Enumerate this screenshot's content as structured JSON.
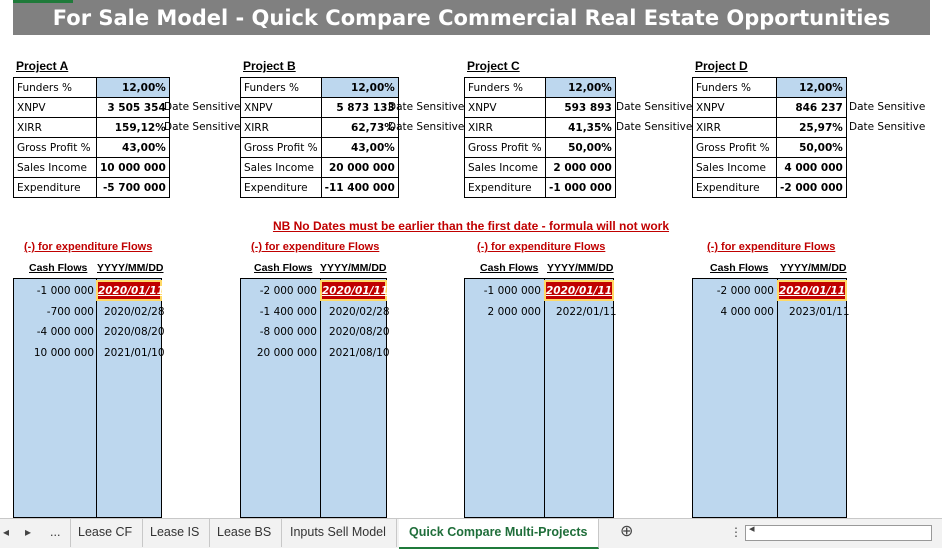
{
  "title": "For Sale Model - Quick Compare Commercial Real Estate Opportunities",
  "labels": {
    "funders": "Funders %",
    "xnpv": "XNPV",
    "xirr": "XIRR",
    "gross_profit": "Gross Profit %",
    "sales_income": "Sales Income",
    "expenditure": "Expenditure",
    "date_sensitive": "Date Sensitive",
    "exp_flows": "(-) for expenditure Flows",
    "cash_flows": "Cash Flows",
    "date_fmt": "YYYY/MM/DD"
  },
  "nb_note": "NB No Dates must be earlier than the first date - formula will not work",
  "projects": [
    {
      "name": "Project A",
      "funders": "12,00%",
      "xnpv": "3 505 354",
      "xirr": "159,12%",
      "gross_profit": "43,00%",
      "sales_income": "10 000 000",
      "expenditure": "-5 700 000",
      "flows": [
        {
          "cf": "-1 000 000",
          "date": "2020/01/11"
        },
        {
          "cf": "-700 000",
          "date": "2020/02/28"
        },
        {
          "cf": "-4 000 000",
          "date": "2020/08/20"
        },
        {
          "cf": "10 000 000",
          "date": "2021/01/10"
        }
      ]
    },
    {
      "name": "Project B",
      "funders": "12,00%",
      "xnpv": "5 873 133",
      "xirr": "62,73%",
      "gross_profit": "43,00%",
      "sales_income": "20 000 000",
      "expenditure": "-11 400 000",
      "flows": [
        {
          "cf": "-2 000 000",
          "date": "2020/01/11"
        },
        {
          "cf": "-1 400 000",
          "date": "2020/02/28"
        },
        {
          "cf": "-8 000 000",
          "date": "2020/08/20"
        },
        {
          "cf": "20 000 000",
          "date": "2021/08/10"
        }
      ]
    },
    {
      "name": "Project C",
      "funders": "12,00%",
      "xnpv": "593 893",
      "xirr": "41,35%",
      "gross_profit": "50,00%",
      "sales_income": "2 000 000",
      "expenditure": "-1 000 000",
      "flows": [
        {
          "cf": "-1 000 000",
          "date": "2020/01/11"
        },
        {
          "cf": "2 000 000",
          "date": "2022/01/11"
        }
      ]
    },
    {
      "name": "Project D",
      "funders": "12,00%",
      "xnpv": "846 237",
      "xirr": "25,97%",
      "gross_profit": "50,00%",
      "sales_income": "4 000 000",
      "expenditure": "-2 000 000",
      "flows": [
        {
          "cf": "-2 000 000",
          "date": "2020/01/11"
        },
        {
          "cf": "4 000 000",
          "date": "2023/01/11"
        }
      ]
    }
  ],
  "tabs": {
    "more": "...",
    "lease_cf": "Lease CF",
    "lease_is": "Lease IS",
    "lease_bs": "Lease BS",
    "inputs_sell": "Inputs Sell Model",
    "quick_compare": "Quick Compare Multi-Projects",
    "add": "⊕",
    "prev": "◂",
    "next": "▸",
    "options": "⋮",
    "scroll_left": "◂"
  }
}
